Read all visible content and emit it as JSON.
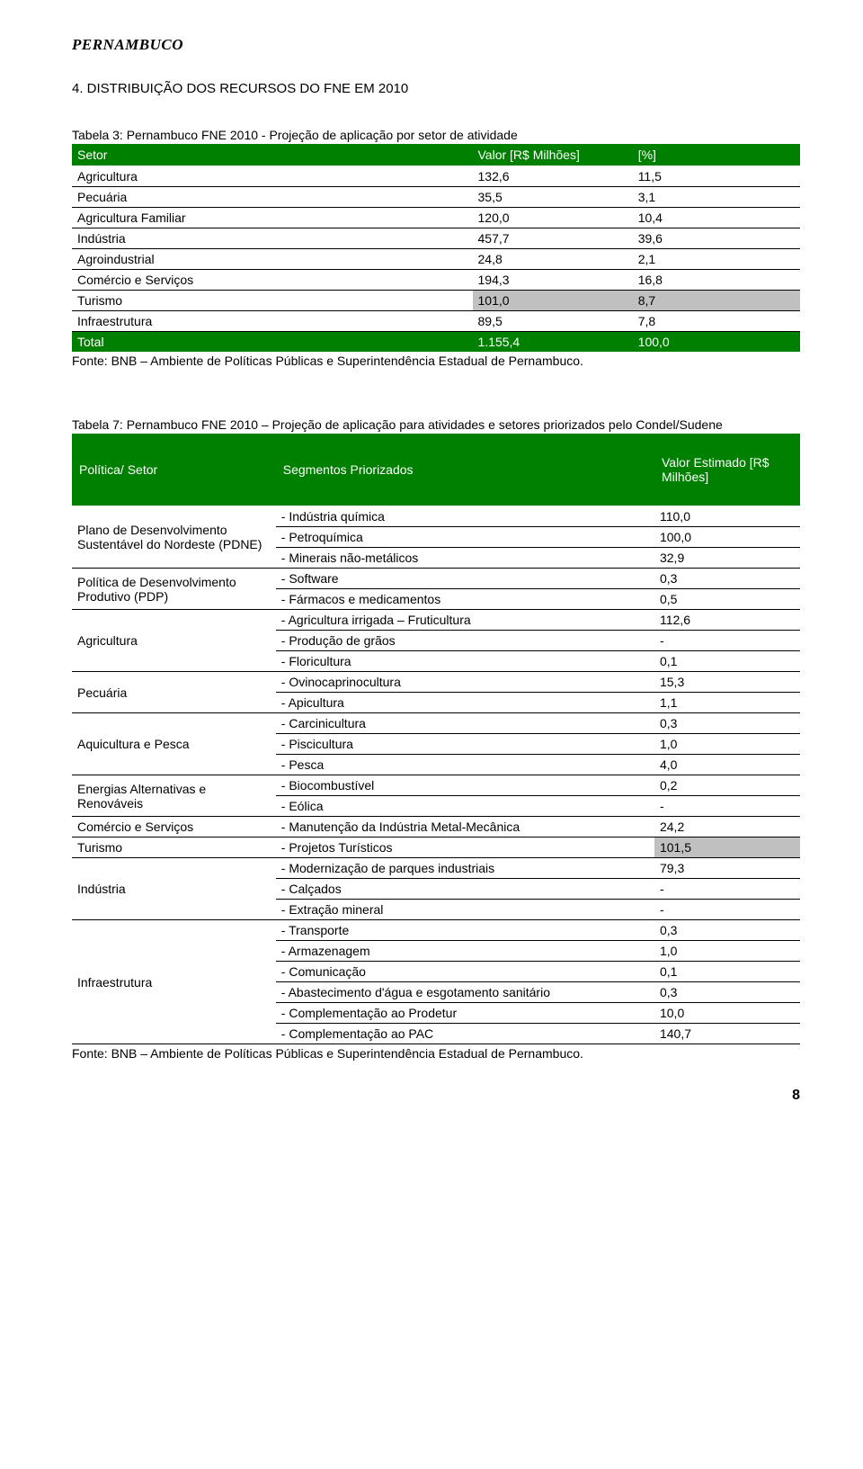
{
  "header_region": "PERNAMBUCO",
  "section_title": "4. DISTRIBUIÇÃO DOS RECURSOS DO FNE EM 2010",
  "table1": {
    "caption": "Tabela 3: Pernambuco FNE 2010 - Projeção de aplicação por setor de atividade",
    "headers": [
      "Setor",
      "Valor [R$ Milhões]",
      "[%]"
    ],
    "rows": [
      {
        "c": [
          "Agricultura",
          "132,6",
          "11,5"
        ],
        "hl": false
      },
      {
        "c": [
          "Pecuária",
          "35,5",
          "3,1"
        ],
        "hl": false
      },
      {
        "c": [
          "Agricultura Familiar",
          "120,0",
          "10,4"
        ],
        "hl": false
      },
      {
        "c": [
          "Indústria",
          "457,7",
          "39,6"
        ],
        "hl": false
      },
      {
        "c": [
          "Agroindustrial",
          "24,8",
          "2,1"
        ],
        "hl": false
      },
      {
        "c": [
          "Comércio e Serviços",
          "194,3",
          "16,8"
        ],
        "hl": false
      },
      {
        "c": [
          "Turismo",
          "101,0",
          "8,7"
        ],
        "hl": true
      },
      {
        "c": [
          "Infraestrutura",
          "89,5",
          "7,8"
        ],
        "hl": false
      }
    ],
    "total": [
      "Total",
      "1.155,4",
      "100,0"
    ],
    "source": "Fonte: BNB – Ambiente de Políticas Públicas e Superintendência Estadual de Pernambuco."
  },
  "table2": {
    "caption": "Tabela 7: Pernambuco FNE 2010 – Projeção de aplicação para atividades e setores priorizados pelo Condel/Sudene",
    "headers": [
      "Política/ Setor",
      "Segmentos Priorizados",
      "Valor Estimado [R$ Milhões]"
    ],
    "groups": [
      {
        "sector": "Plano de Desenvolvimento Sustentável do Nordeste (PDNE)",
        "rows": [
          [
            "- Indústria química",
            "110,0",
            false
          ],
          [
            "- Petroquímica",
            "100,0",
            false
          ],
          [
            "- Minerais não-metálicos",
            "32,9",
            false
          ]
        ]
      },
      {
        "sector": "Política de Desenvolvimento Produtivo (PDP)",
        "rows": [
          [
            "- Software",
            "0,3",
            false
          ],
          [
            "- Fármacos e medicamentos",
            "0,5",
            false
          ]
        ]
      },
      {
        "sector": "Agricultura",
        "rows": [
          [
            "- Agricultura irrigada – Fruticultura",
            "112,6",
            false
          ],
          [
            "- Produção de grãos",
            "-",
            false
          ],
          [
            "- Floricultura",
            "0,1",
            false
          ]
        ]
      },
      {
        "sector": "Pecuária",
        "rows": [
          [
            "- Ovinocaprinocultura",
            "15,3",
            false
          ],
          [
            "- Apicultura",
            "1,1",
            false
          ]
        ]
      },
      {
        "sector": "Aquicultura e Pesca",
        "rows": [
          [
            "- Carcinicultura",
            "0,3",
            false
          ],
          [
            "- Piscicultura",
            "1,0",
            false
          ],
          [
            "- Pesca",
            "4,0",
            false
          ]
        ]
      },
      {
        "sector": "Energias Alternativas e Renováveis",
        "rows": [
          [
            "- Biocombustível",
            "0,2",
            false
          ],
          [
            "- Eólica",
            "-",
            false
          ]
        ]
      },
      {
        "sector": "Comércio e Serviços",
        "rows": [
          [
            "- Manutenção da Indústria Metal-Mecânica",
            "24,2",
            false
          ]
        ]
      },
      {
        "sector": "Turismo",
        "rows": [
          [
            "- Projetos Turísticos",
            "101,5",
            true
          ]
        ]
      },
      {
        "sector": "Indústria",
        "rows": [
          [
            "- Modernização de parques industriais",
            "79,3",
            false
          ],
          [
            "- Calçados",
            "-",
            false
          ],
          [
            "- Extração mineral",
            "-",
            false
          ]
        ]
      },
      {
        "sector": "Infraestrutura",
        "rows": [
          [
            "- Transporte",
            "0,3",
            false
          ],
          [
            "- Armazenagem",
            "1,0",
            false
          ],
          [
            "- Comunicação",
            "0,1",
            false
          ],
          [
            "- Abastecimento d'água e esgotamento sanitário",
            "0,3",
            false
          ],
          [
            "- Complementação ao Prodetur",
            "10,0",
            false
          ],
          [
            "- Complementação ao PAC",
            "140,7",
            false
          ]
        ]
      }
    ],
    "source": "Fonte: BNB – Ambiente de Políticas Públicas e Superintendência Estadual de Pernambuco."
  },
  "page_number": "8"
}
